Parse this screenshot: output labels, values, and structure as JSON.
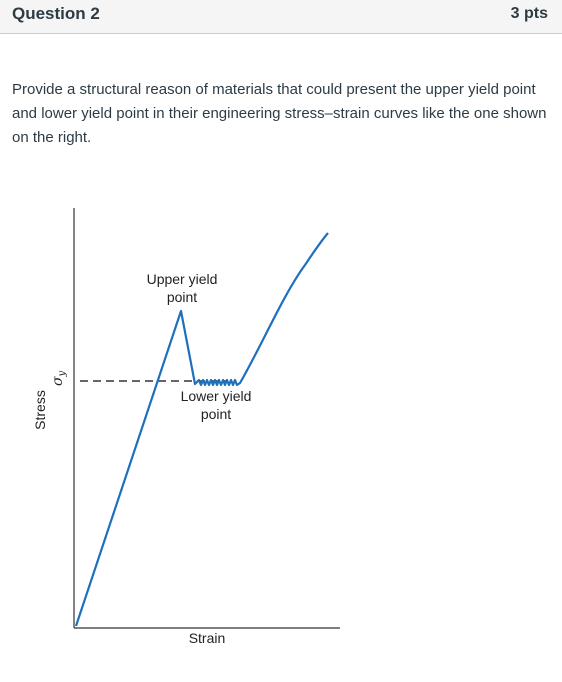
{
  "question": {
    "title": "Question 2",
    "points": "3 pts",
    "prompt": "Provide a structural reason of materials that could present the upper yield point and lower yield point in their engineering stress–strain curves like the one shown on the right."
  },
  "figure": {
    "upper_label_line1": "Upper yield",
    "upper_label_line2": "point",
    "lower_label_line1": "Lower yield",
    "lower_label_line2": "point",
    "sigma_symbol": "σ",
    "sigma_subscript": "y",
    "y_axis_label": "Stress",
    "x_axis_label": "Strain",
    "curve_color": "#1f6fbf",
    "axis_color": "#333333"
  }
}
